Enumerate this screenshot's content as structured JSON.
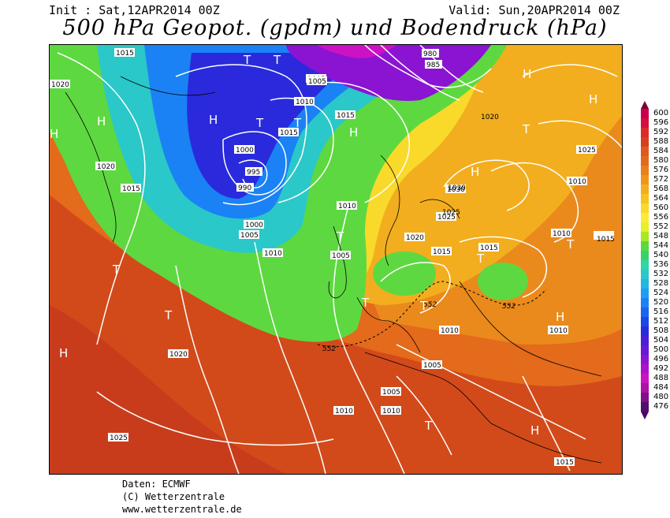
{
  "header": {
    "init": "Init : Sat,12APR2014 00Z",
    "valid": "Valid: Sun,20APR2014 00Z",
    "title": "500 hPa Geopot. (gpdm) und Bodendruck (hPa)"
  },
  "legend": {
    "levels": [
      "600",
      "596",
      "592",
      "588",
      "584",
      "580",
      "576",
      "572",
      "568",
      "564",
      "560",
      "556",
      "552",
      "548",
      "544",
      "540",
      "536",
      "532",
      "528",
      "524",
      "520",
      "516",
      "512",
      "508",
      "504",
      "500",
      "496",
      "492",
      "488",
      "484",
      "480",
      "476"
    ],
    "colors": [
      "#c8004f",
      "#d40f3c",
      "#dc2a2a",
      "#d83f1e",
      "#de5a1e",
      "#e36a1c",
      "#e8801c",
      "#ee961c",
      "#f2ae1e",
      "#f6c41e",
      "#f9d92a",
      "#fbea38",
      "#e4f02c",
      "#aae824",
      "#5ed840",
      "#38d266",
      "#2ed7a4",
      "#2ac8c8",
      "#22b6e0",
      "#1e9ef0",
      "#1a82f4",
      "#1a64f0",
      "#1c46e6",
      "#2a2adc",
      "#4a1ed8",
      "#6818d6",
      "#8a14d2",
      "#ac12cc",
      "#cc12c4",
      "#b010a8",
      "#80108a",
      "#50106a"
    ]
  },
  "pressure_labels": [
    "1015",
    "1020",
    "1025",
    "1030",
    "1010",
    "1005",
    "1000",
    "995",
    "990",
    "985",
    "980",
    "1015",
    "1005",
    "1010",
    "1015",
    "1020",
    "1015",
    "1010",
    "1005",
    "1000",
    "1010",
    "1005",
    "1015",
    "1020",
    "1025",
    "1015",
    "1010",
    "1010",
    "1005",
    "1010",
    "1010",
    "1010",
    "1005",
    "1015",
    "1020",
    "1025",
    "1030",
    "1020",
    "1025",
    "1015"
  ],
  "geopot_labels": [
    "552",
    "552",
    "552"
  ],
  "highs": [
    "H",
    "H",
    "H",
    "H",
    "H",
    "H",
    "H",
    "H",
    "H",
    "H"
  ],
  "lows": [
    "T",
    "T",
    "T",
    "T",
    "T",
    "T",
    "T",
    "T",
    "T",
    "T",
    "T",
    "T",
    "T"
  ],
  "footer": {
    "line1": "Daten: ECMWF",
    "line2": "(C) Wetterzentrale",
    "line3": "www.wetterzentrale.de"
  }
}
